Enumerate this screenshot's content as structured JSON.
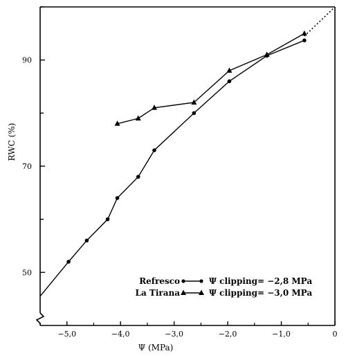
{
  "chart_data": {
    "type": "line",
    "xlabel": "Ψ (MPa)",
    "ylabel": "RWC (%)",
    "xlim": [
      -5.5,
      0
    ],
    "ylim": [
      40,
      100
    ],
    "x_ticks": [
      -5.0,
      -4.0,
      -3.0,
      -2.0,
      -1.0,
      0
    ],
    "x_tick_labels": [
      "−5,0",
      "−4,0",
      "−3,0",
      "−2,0",
      "−1,0",
      "0"
    ],
    "y_ticks": [
      50,
      70,
      90
    ],
    "y_tick_labels": [
      "50",
      "70",
      "90"
    ],
    "grid": false,
    "legend_position": "bottom-right",
    "series": [
      {
        "name": "Refresco",
        "marker": "circle",
        "x": [
          -4.97,
          -4.63,
          -4.24,
          -4.06,
          -3.67,
          -3.37,
          -2.63,
          -1.97,
          -1.27,
          -0.57
        ],
        "y": [
          52,
          56,
          60,
          64,
          68,
          73,
          80,
          86,
          90.8,
          93.7
        ],
        "clipping_label": "Ψ clipping",
        "clipping_value": "= −2,8 MPa"
      },
      {
        "name": "La Tirana",
        "marker": "triangle",
        "x": [
          -4.06,
          -3.67,
          -3.37,
          -2.63,
          -1.97,
          -1.27,
          -0.57
        ],
        "y": [
          78,
          79,
          81,
          82,
          88,
          91,
          95
        ],
        "clipping_label": "Ψ clipping",
        "clipping_value": "= −3,0 MPa"
      }
    ],
    "extension": {
      "x": [
        -0.57,
        0
      ],
      "y": [
        94.5,
        100
      ],
      "style": "dotted"
    },
    "lower_extension": {
      "x": [
        -5.5,
        -4.97
      ],
      "y": [
        45.5,
        52
      ]
    }
  }
}
